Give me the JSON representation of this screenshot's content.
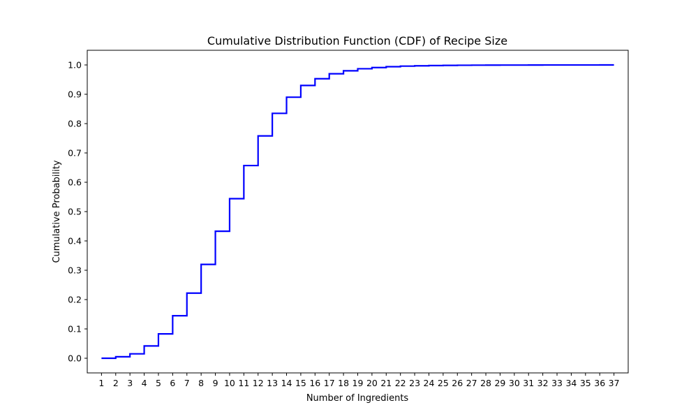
{
  "chart_data": {
    "type": "line",
    "step": "post",
    "title": "Cumulative Distribution Function (CDF) of Recipe Size",
    "xlabel": "Number of Ingredients",
    "ylabel": "Cumulative Probability",
    "xlim": [
      0,
      38
    ],
    "ylim": [
      -0.05,
      1.05
    ],
    "xticks": [
      1,
      2,
      3,
      4,
      5,
      6,
      7,
      8,
      9,
      10,
      11,
      12,
      13,
      14,
      15,
      16,
      17,
      18,
      19,
      20,
      21,
      22,
      23,
      24,
      25,
      26,
      27,
      28,
      29,
      30,
      31,
      32,
      33,
      34,
      35,
      36,
      37
    ],
    "xtick_labels": [
      "1",
      "2",
      "3",
      "4",
      "5",
      "6",
      "7",
      "8",
      "9",
      "10",
      "11",
      "12",
      "13",
      "14",
      "15",
      "16",
      "17",
      "18",
      "19",
      "20",
      "21",
      "22",
      "23",
      "24",
      "25",
      "26",
      "27",
      "28",
      "29",
      "30",
      "31",
      "32",
      "33",
      "34",
      "35",
      "36",
      "37"
    ],
    "yticks": [
      0.0,
      0.1,
      0.2,
      0.3,
      0.4,
      0.5,
      0.6,
      0.7,
      0.8,
      0.9,
      1.0
    ],
    "ytick_labels": [
      "0.0",
      "0.1",
      "0.2",
      "0.3",
      "0.4",
      "0.5",
      "0.6",
      "0.7",
      "0.8",
      "0.9",
      "1.0"
    ],
    "grid": false,
    "legend": "none",
    "series": [
      {
        "color": "#0000ff",
        "x": [
          1,
          2,
          3,
          4,
          5,
          6,
          7,
          8,
          9,
          10,
          11,
          12,
          13,
          14,
          15,
          16,
          17,
          18,
          19,
          20,
          21,
          22,
          23,
          24,
          25,
          26,
          27,
          28,
          29,
          30,
          31,
          32,
          33,
          34,
          35,
          36,
          37
        ],
        "y": [
          0.0,
          0.005,
          0.015,
          0.042,
          0.083,
          0.145,
          0.222,
          0.32,
          0.433,
          0.544,
          0.657,
          0.758,
          0.835,
          0.89,
          0.93,
          0.953,
          0.97,
          0.98,
          0.987,
          0.991,
          0.994,
          0.996,
          0.997,
          0.998,
          0.9985,
          0.999,
          0.9992,
          0.9994,
          0.9995,
          0.9996,
          0.9997,
          0.9998,
          0.9998,
          0.9999,
          0.9999,
          1.0,
          1.0
        ]
      }
    ]
  }
}
